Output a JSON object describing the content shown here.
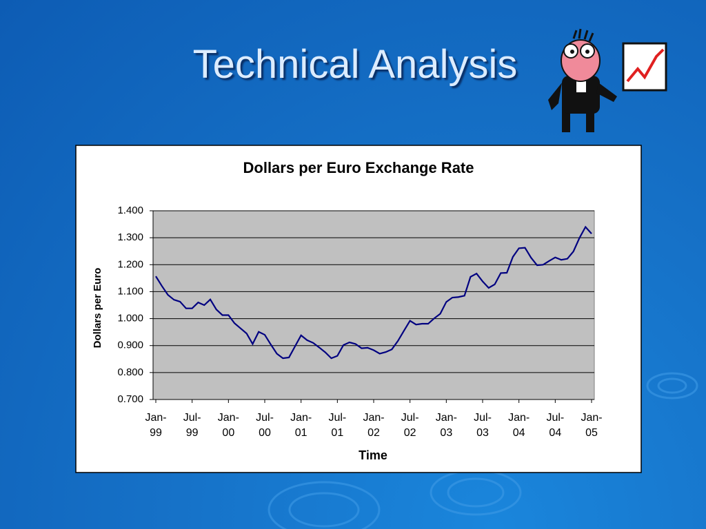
{
  "title": "Technical Analysis",
  "chart_data": {
    "type": "line",
    "title": "Dollars per Euro Exchange Rate",
    "x_label": "Time",
    "y_label": "Dollars per Euro",
    "color": "#000080",
    "grid": true,
    "categories": [
      "Jan-99",
      null,
      null,
      null,
      null,
      null,
      "Jul-99",
      null,
      null,
      null,
      null,
      null,
      "Jan-00",
      null,
      null,
      null,
      null,
      null,
      "Jul-00",
      null,
      null,
      null,
      null,
      null,
      "Jan-01",
      null,
      null,
      null,
      null,
      null,
      "Jul-01",
      null,
      null,
      null,
      null,
      null,
      "Jan-02",
      null,
      null,
      null,
      null,
      null,
      "Jul-02",
      null,
      null,
      null,
      null,
      null,
      "Jan-03",
      null,
      null,
      null,
      null,
      null,
      "Jul-03",
      null,
      null,
      null,
      null,
      null,
      "Jan-04",
      null,
      null,
      null,
      null,
      null,
      "Jul-04",
      null,
      null,
      null,
      null,
      null,
      "Jan-05"
    ],
    "values": [
      1.157,
      1.121,
      1.088,
      1.07,
      1.063,
      1.038,
      1.038,
      1.06,
      1.05,
      1.071,
      1.034,
      1.013,
      1.013,
      0.983,
      0.964,
      0.945,
      0.906,
      0.951,
      0.94,
      0.904,
      0.87,
      0.853,
      0.856,
      0.897,
      0.938,
      0.92,
      0.91,
      0.893,
      0.875,
      0.853,
      0.862,
      0.902,
      0.912,
      0.906,
      0.89,
      0.892,
      0.883,
      0.87,
      0.876,
      0.886,
      0.917,
      0.955,
      0.992,
      0.978,
      0.981,
      0.981,
      1.001,
      1.018,
      1.062,
      1.078,
      1.08,
      1.085,
      1.155,
      1.167,
      1.138,
      1.114,
      1.127,
      1.169,
      1.17,
      1.229,
      1.261,
      1.263,
      1.226,
      1.198,
      1.2,
      1.214,
      1.227,
      1.218,
      1.222,
      1.249,
      1.299,
      1.34,
      1.315
    ],
    "ylim": [
      0.7,
      1.4
    ],
    "yticks": [
      {
        "value": 0.7,
        "label": "0.700"
      },
      {
        "value": 0.8,
        "label": "0.800"
      },
      {
        "value": 0.9,
        "label": "0.900"
      },
      {
        "value": 1.0,
        "label": "1.000"
      },
      {
        "value": 1.1,
        "label": "1.100"
      },
      {
        "value": 1.2,
        "label": "1.200"
      },
      {
        "value": 1.3,
        "label": "1.300"
      },
      {
        "value": 1.4,
        "label": "1.400"
      }
    ]
  }
}
